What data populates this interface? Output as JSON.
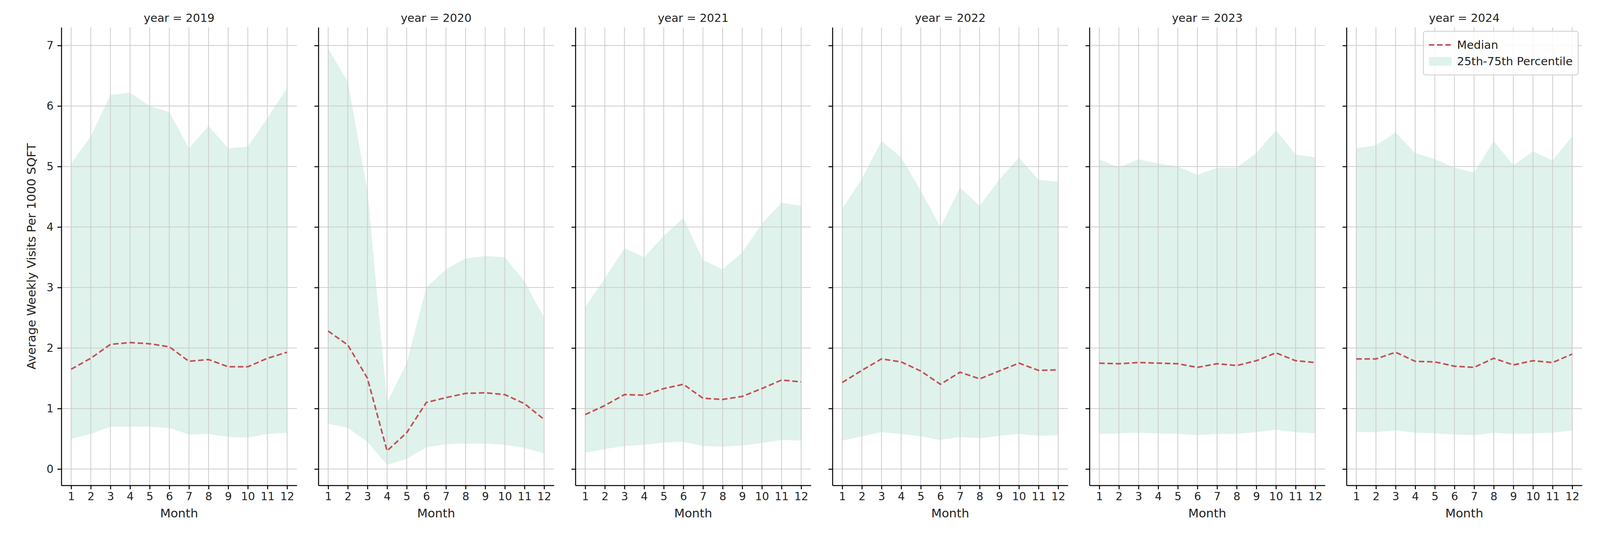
{
  "chart_data": [
    {
      "type": "line",
      "title": "year = 2019",
      "xlabel": "Month",
      "ylabel": "Average Weekly Visits Per 1000 SQFT",
      "x": [
        1,
        2,
        3,
        4,
        5,
        6,
        7,
        8,
        9,
        10,
        11,
        12
      ],
      "series": [
        {
          "name": "Median",
          "color": "#c44e52",
          "line_style": "dashed",
          "values": [
            1.65,
            1.83,
            2.06,
            2.09,
            2.07,
            2.02,
            1.78,
            1.81,
            1.69,
            1.69,
            1.83,
            1.93
          ]
        },
        {
          "name": "25th-75th Percentile",
          "type": "band",
          "color": "#dff2ec",
          "lower": [
            0.5,
            0.58,
            0.7,
            0.7,
            0.7,
            0.68,
            0.57,
            0.58,
            0.53,
            0.52,
            0.58,
            0.6
          ],
          "upper": [
            5.05,
            5.5,
            6.18,
            6.22,
            6.0,
            5.9,
            5.3,
            5.67,
            5.3,
            5.33,
            5.8,
            6.3
          ]
        }
      ],
      "xlim": [
        0.5,
        12.5
      ],
      "xticks": [
        1,
        2,
        3,
        4,
        5,
        6,
        7,
        8,
        9,
        10,
        11,
        12
      ],
      "ylim": [
        -0.27,
        7.3
      ],
      "yticks": [
        0,
        1,
        2,
        3,
        4,
        5,
        6,
        7
      ],
      "grid": true
    },
    {
      "type": "line",
      "title": "year = 2020",
      "xlabel": "Month",
      "x": [
        1,
        2,
        3,
        4,
        5,
        6,
        7,
        8,
        9,
        10,
        11,
        12
      ],
      "series": [
        {
          "name": "Median",
          "color": "#c44e52",
          "line_style": "dashed",
          "values": [
            2.28,
            2.05,
            1.5,
            0.3,
            0.6,
            1.1,
            1.18,
            1.25,
            1.26,
            1.23,
            1.08,
            0.82
          ]
        },
        {
          "name": "25th-75th Percentile",
          "type": "band",
          "color": "#dff2ec",
          "lower": [
            0.75,
            0.68,
            0.45,
            0.07,
            0.17,
            0.36,
            0.41,
            0.42,
            0.42,
            0.4,
            0.35,
            0.26
          ],
          "upper": [
            6.95,
            6.4,
            4.6,
            1.1,
            1.75,
            3.0,
            3.3,
            3.48,
            3.52,
            3.5,
            3.1,
            2.5
          ]
        }
      ],
      "xlim": [
        0.5,
        12.5
      ],
      "xticks": [
        1,
        2,
        3,
        4,
        5,
        6,
        7,
        8,
        9,
        10,
        11,
        12
      ],
      "ylim": [
        -0.27,
        7.3
      ],
      "yticks": [
        0,
        1,
        2,
        3,
        4,
        5,
        6,
        7
      ],
      "grid": true,
      "tick_labels": "x"
    },
    {
      "type": "line",
      "title": "year = 2021",
      "xlabel": "Month",
      "x": [
        1,
        2,
        3,
        4,
        5,
        6,
        7,
        8,
        9,
        10,
        11,
        12
      ],
      "series": [
        {
          "name": "Median",
          "color": "#c44e52",
          "line_style": "dashed",
          "values": [
            0.9,
            1.05,
            1.23,
            1.22,
            1.33,
            1.4,
            1.17,
            1.15,
            1.2,
            1.33,
            1.47,
            1.44
          ]
        },
        {
          "name": "25th-75th Percentile",
          "type": "band",
          "color": "#dff2ec",
          "lower": [
            0.27,
            0.33,
            0.38,
            0.4,
            0.44,
            0.45,
            0.38,
            0.37,
            0.39,
            0.43,
            0.48,
            0.47
          ],
          "upper": [
            2.68,
            3.15,
            3.65,
            3.5,
            3.85,
            4.15,
            3.45,
            3.3,
            3.58,
            4.05,
            4.4,
            4.35
          ]
        }
      ],
      "xlim": [
        0.5,
        12.5
      ],
      "xticks": [
        1,
        2,
        3,
        4,
        5,
        6,
        7,
        8,
        9,
        10,
        11,
        12
      ],
      "ylim": [
        -0.27,
        7.3
      ],
      "yticks": [
        0,
        1,
        2,
        3,
        4,
        5,
        6,
        7
      ],
      "grid": true,
      "tick_labels": "x"
    },
    {
      "type": "line",
      "title": "year = 2022",
      "xlabel": "Month",
      "x": [
        1,
        2,
        3,
        4,
        5,
        6,
        7,
        8,
        9,
        10,
        11,
        12
      ],
      "series": [
        {
          "name": "Median",
          "color": "#c44e52",
          "line_style": "dashed",
          "values": [
            1.43,
            1.63,
            1.82,
            1.77,
            1.62,
            1.4,
            1.6,
            1.49,
            1.62,
            1.75,
            1.63,
            1.64
          ]
        },
        {
          "name": "25th-75th Percentile",
          "type": "band",
          "color": "#dff2ec",
          "lower": [
            0.47,
            0.54,
            0.61,
            0.58,
            0.54,
            0.48,
            0.53,
            0.51,
            0.55,
            0.58,
            0.55,
            0.56
          ],
          "upper": [
            4.3,
            4.8,
            5.42,
            5.15,
            4.6,
            4.0,
            4.65,
            4.35,
            4.78,
            5.15,
            4.78,
            4.75
          ]
        }
      ],
      "xlim": [
        0.5,
        12.5
      ],
      "xticks": [
        1,
        2,
        3,
        4,
        5,
        6,
        7,
        8,
        9,
        10,
        11,
        12
      ],
      "ylim": [
        -0.27,
        7.3
      ],
      "yticks": [
        0,
        1,
        2,
        3,
        4,
        5,
        6,
        7
      ],
      "grid": true,
      "tick_labels": "x"
    },
    {
      "type": "line",
      "title": "year = 2023",
      "xlabel": "Month",
      "x": [
        1,
        2,
        3,
        4,
        5,
        6,
        7,
        8,
        9,
        10,
        11,
        12
      ],
      "series": [
        {
          "name": "Median",
          "color": "#c44e52",
          "line_style": "dashed",
          "values": [
            1.75,
            1.74,
            1.76,
            1.75,
            1.74,
            1.68,
            1.74,
            1.71,
            1.79,
            1.92,
            1.79,
            1.76
          ]
        },
        {
          "name": "25th-75th Percentile",
          "type": "band",
          "color": "#dff2ec",
          "lower": [
            0.58,
            0.59,
            0.6,
            0.59,
            0.58,
            0.56,
            0.58,
            0.58,
            0.61,
            0.65,
            0.61,
            0.59
          ],
          "upper": [
            5.12,
            4.98,
            5.12,
            5.05,
            5.0,
            4.86,
            4.98,
            4.98,
            5.22,
            5.6,
            5.2,
            5.15
          ]
        }
      ],
      "xlim": [
        0.5,
        12.5
      ],
      "xticks": [
        1,
        2,
        3,
        4,
        5,
        6,
        7,
        8,
        9,
        10,
        11,
        12
      ],
      "ylim": [
        -0.27,
        7.3
      ],
      "yticks": [
        0,
        1,
        2,
        3,
        4,
        5,
        6,
        7
      ],
      "grid": true,
      "tick_labels": "x"
    },
    {
      "type": "line",
      "title": "year = 2024",
      "xlabel": "Month",
      "x": [
        1,
        2,
        3,
        4,
        5,
        6,
        7,
        8,
        9,
        10,
        11,
        12
      ],
      "series": [
        {
          "name": "Median",
          "color": "#c44e52",
          "line_style": "dashed",
          "values": [
            1.82,
            1.82,
            1.93,
            1.78,
            1.77,
            1.7,
            1.68,
            1.83,
            1.72,
            1.79,
            1.76,
            1.9
          ]
        },
        {
          "name": "25th-75th Percentile",
          "type": "band",
          "color": "#dff2ec",
          "lower": [
            0.61,
            0.61,
            0.64,
            0.6,
            0.59,
            0.57,
            0.56,
            0.6,
            0.58,
            0.59,
            0.6,
            0.64
          ],
          "upper": [
            5.3,
            5.35,
            5.56,
            5.22,
            5.12,
            4.98,
            4.9,
            5.42,
            5.02,
            5.25,
            5.1,
            5.5
          ]
        }
      ],
      "xlim": [
        0.5,
        12.5
      ],
      "xticks": [
        1,
        2,
        3,
        4,
        5,
        6,
        7,
        8,
        9,
        10,
        11,
        12
      ],
      "ylim": [
        -0.27,
        7.3
      ],
      "yticks": [
        0,
        1,
        2,
        3,
        4,
        5,
        6,
        7
      ],
      "grid": true,
      "tick_labels": "x",
      "legend": "upper right"
    }
  ]
}
